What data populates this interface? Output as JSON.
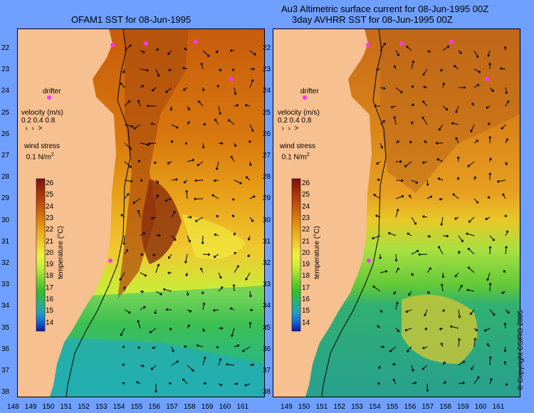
{
  "titles": {
    "left": "OFAM1 SST for 08-Jun-1995",
    "right_line1": "Au3 Altimetric surface current for 08-Jun-1995 00Z",
    "right_line2": "3day AVHRR SST for 08-Jun-1995 00Z"
  },
  "legend": {
    "drifter": "drifter",
    "velocity_label": "velocity (m/s)",
    "velocity_values": "0.2 0.4 0.8",
    "wind_label": "wind stress",
    "wind_value": "0.1 N/m",
    "wind_sup": "2",
    "colorbar_title": "temperature (°C)",
    "colorbar_ticks": [
      "26",
      "25",
      "24",
      "23",
      "22",
      "21",
      "20",
      "19",
      "18",
      "17",
      "16",
      "15",
      "14"
    ]
  },
  "axes": {
    "lat_ticks": [
      "22",
      "23",
      "24",
      "25",
      "26",
      "27",
      "28",
      "29",
      "30",
      "31",
      "32",
      "33",
      "34",
      "35",
      "36",
      "37",
      "38"
    ],
    "lon_ticks_left": [
      "148",
      "149",
      "150",
      "151",
      "152",
      "153",
      "154",
      "155",
      "156",
      "157",
      "158",
      "159",
      "160",
      "161"
    ],
    "lon_ticks_right": [
      "149",
      "150",
      "151",
      "152",
      "153",
      "154",
      "155",
      "156",
      "157",
      "158",
      "159",
      "160",
      "161"
    ]
  },
  "copyright": "© Copyright CSIRO 2005",
  "colors": {
    "background": "#6fa0ff",
    "land": "#f7c090",
    "drifter": "#ff33ff",
    "colorbar": [
      "#7a0f0f",
      "#a0300a",
      "#c05010",
      "#d8780e",
      "#e8a018",
      "#f0c830",
      "#f0f040",
      "#c8ee38",
      "#7cd22c",
      "#30c028",
      "#28b080",
      "#20a0c0",
      "#1870d0",
      "#1040c0",
      "#10208c"
    ]
  }
}
